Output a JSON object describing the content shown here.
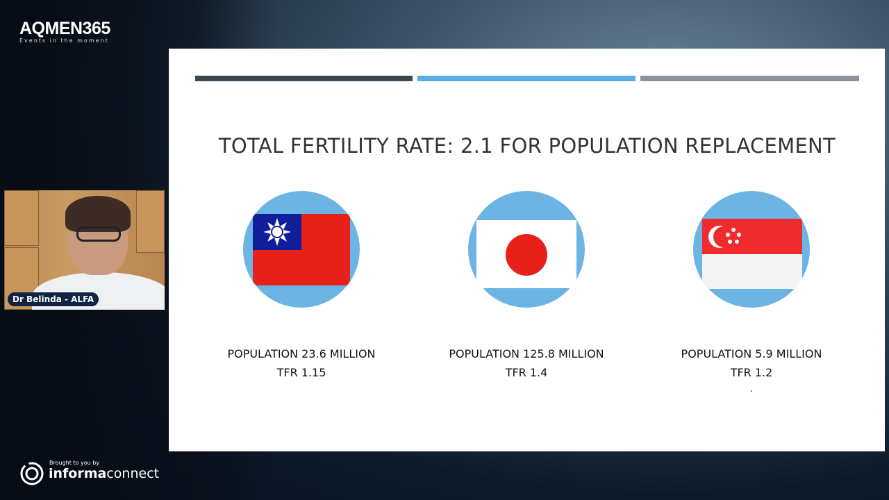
{
  "header": {
    "logo": "AQMEN365",
    "tagline": "Events in the moment"
  },
  "speaker": {
    "name": "Dr Belinda - ALFA"
  },
  "slide": {
    "title": "TOTAL FERTILITY RATE: 2.1 FOR POPULATION REPLACEMENT",
    "accent_colors": [
      "#3a4750",
      "#5dade2",
      "#8e9299"
    ],
    "countries": [
      {
        "flag": "taiwan-flag",
        "population": "POPULATION 23.6 MILLION",
        "tfr": "TFR 1.15"
      },
      {
        "flag": "japan-flag",
        "population": "POPULATION 125.8 MILLION",
        "tfr": "TFR 1.4"
      },
      {
        "flag": "singapore-flag",
        "population": "POPULATION 5.9 MILLION",
        "tfr": "TFR 1.2",
        "note": "."
      }
    ]
  },
  "footer": {
    "brought": "Brought to you by",
    "brand_bold": "informa",
    "brand_rest": "connect"
  }
}
